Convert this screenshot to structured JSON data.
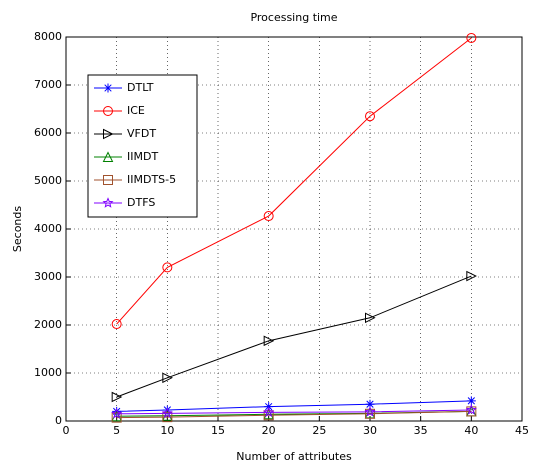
{
  "chart_data": {
    "type": "line",
    "title": "Processing time",
    "x_label": "Number of attributes",
    "y_label": "Seconds",
    "x": [
      5,
      10,
      20,
      30,
      40
    ],
    "series": [
      {
        "name": "DTLT",
        "color": "#0000ff",
        "marker": "asterisk",
        "values": [
          200,
          230,
          300,
          350,
          420
        ]
      },
      {
        "name": "ICE",
        "color": "#ff0000",
        "marker": "circle",
        "values": [
          2020,
          3200,
          4270,
          6350,
          7980
        ]
      },
      {
        "name": "VFDT",
        "color": "#000000",
        "marker": "triangle-right",
        "values": [
          500,
          900,
          1670,
          2150,
          3020
        ]
      },
      {
        "name": "IIMDT",
        "color": "#008000",
        "marker": "triangle-up",
        "values": [
          100,
          110,
          140,
          160,
          200
        ]
      },
      {
        "name": "IIMDTS-5",
        "color": "#a0522d",
        "marker": "square",
        "values": [
          70,
          80,
          120,
          150,
          200
        ]
      },
      {
        "name": "DTFS",
        "color": "#8000ff",
        "marker": "star",
        "values": [
          150,
          160,
          180,
          190,
          230
        ]
      }
    ],
    "xlim": [
      0,
      45
    ],
    "xticks": [
      0,
      5,
      10,
      15,
      20,
      25,
      30,
      35,
      40,
      45
    ],
    "ylim": [
      0,
      8000
    ],
    "yticks": [
      0,
      1000,
      2000,
      3000,
      4000,
      5000,
      6000,
      7000,
      8000
    ],
    "grid": true,
    "legend": "upper-left"
  }
}
